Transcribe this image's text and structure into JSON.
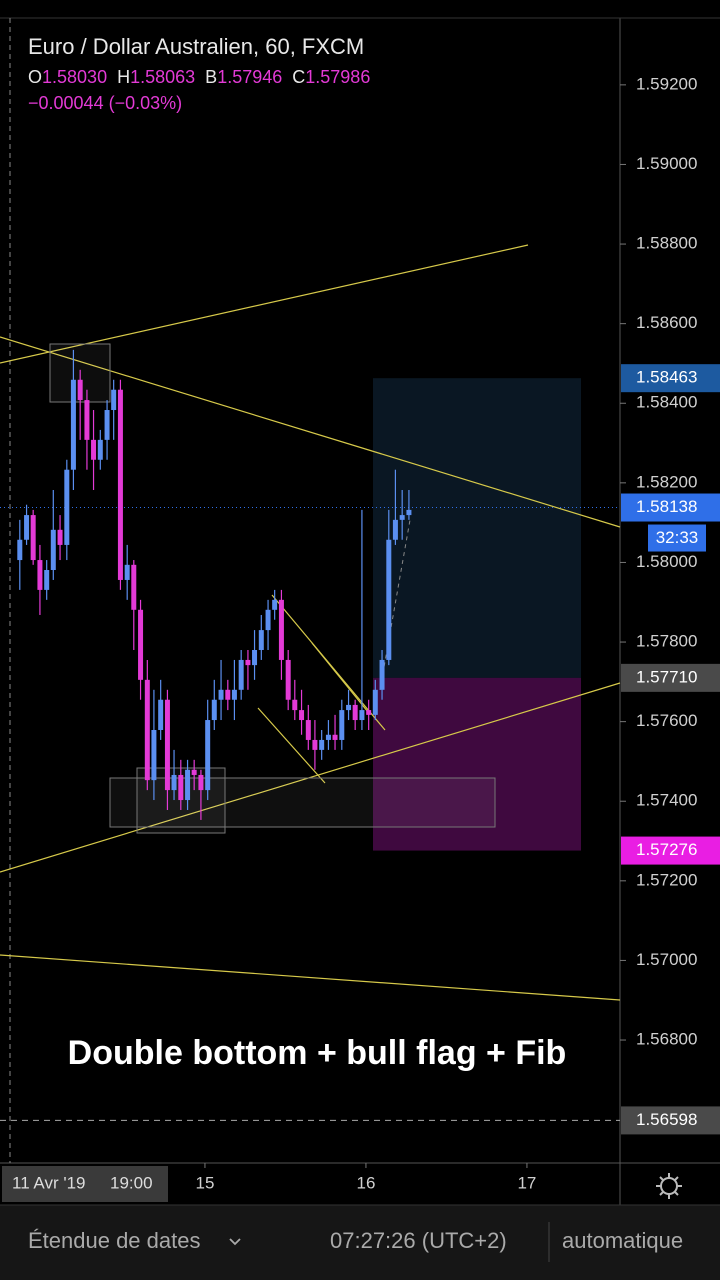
{
  "chart_data": {
    "type": "candlestick",
    "title": "Euro / Dollar Australien, 60, FXCM",
    "ohlc_header": [
      {
        "key": "O",
        "value": "1.58030"
      },
      {
        "key": "H",
        "value": "1.58063"
      },
      {
        "key": "B",
        "value": "1.57946"
      },
      {
        "key": "C",
        "value": "1.57986"
      }
    ],
    "change": "−0.00044 (−0.03%)",
    "annotation": "Double bottom + bull flag + Fib",
    "up_color": "#5b8ff0",
    "down_color": "#e33ad6",
    "xlim": [
      13.727,
      17.578
    ],
    "xticks": [
      15,
      16,
      17
    ],
    "ylim": [
      1.56491,
      1.59368
    ],
    "yticks": [
      {
        "value": 1.592,
        "label": "1.59200"
      },
      {
        "value": 1.59,
        "label": "1.59000"
      },
      {
        "value": 1.588,
        "label": "1.58800"
      },
      {
        "value": 1.586,
        "label": "1.58600"
      },
      {
        "value": 1.584,
        "label": "1.58400"
      },
      {
        "value": 1.582,
        "label": "1.58200"
      },
      {
        "value": 1.58,
        "label": "1.58000"
      },
      {
        "value": 1.578,
        "label": "1.57800"
      },
      {
        "value": 1.576,
        "label": "1.57600"
      },
      {
        "value": 1.574,
        "label": "1.57400"
      },
      {
        "value": 1.572,
        "label": "1.57200"
      },
      {
        "value": 1.57,
        "label": "1.57000"
      },
      {
        "value": 1.568,
        "label": "1.56800"
      }
    ],
    "price_labels": [
      {
        "value": 1.58463,
        "label": "1.58463",
        "color": "#1d5aa0"
      },
      {
        "value": 1.58138,
        "label": "1.58138",
        "color": "#2f6fe8",
        "line": "dotted"
      },
      {
        "value": 1.5771,
        "label": "1.57710",
        "color": "#4a4a4a"
      },
      {
        "value": 1.57276,
        "label": "1.57276",
        "color": "#e91ee3"
      },
      {
        "value": 1.56598,
        "label": "1.56598",
        "color": "#4a4a4a",
        "line": "dashed"
      }
    ],
    "countdown": "32:33",
    "crosshair": {
      "date": "11 Avr '19",
      "time": "19:00"
    },
    "x": [
      13.85,
      13.892,
      13.933,
      13.975,
      14.017,
      14.058,
      14.1,
      14.142,
      14.183,
      14.225,
      14.267,
      14.308,
      14.35,
      14.392,
      14.433,
      14.475,
      14.517,
      14.558,
      14.6,
      14.642,
      14.683,
      14.725,
      14.767,
      14.808,
      14.85,
      14.892,
      14.933,
      14.975,
      15.017,
      15.058,
      15.1,
      15.142,
      15.183,
      15.225,
      15.267,
      15.308,
      15.35,
      15.392,
      15.433,
      15.475,
      15.517,
      15.558,
      15.6,
      15.642,
      15.683,
      15.725,
      15.767,
      15.808,
      15.85,
      15.892,
      15.933,
      15.975,
      16.017,
      16.058,
      16.1,
      16.142,
      16.183,
      16.225,
      16.267
    ],
    "open": [
      1.58006,
      1.58057,
      1.58119,
      1.58006,
      1.57931,
      1.57981,
      1.58082,
      1.58044,
      1.58233,
      1.58459,
      1.58408,
      1.58308,
      1.58258,
      1.58308,
      1.58383,
      1.58434,
      1.57956,
      1.57994,
      1.57881,
      1.57705,
      1.57453,
      1.57579,
      1.57655,
      1.57428,
      1.57466,
      1.57403,
      1.57479,
      1.57466,
      1.57428,
      1.57604,
      1.57655,
      1.5768,
      1.57655,
      1.5768,
      1.57755,
      1.57742,
      1.5778,
      1.5783,
      1.57881,
      1.57906,
      1.57755,
      1.57655,
      1.57629,
      1.57604,
      1.57554,
      1.57529,
      1.57554,
      1.57567,
      1.57554,
      1.57629,
      1.57642,
      1.57604,
      1.57629,
      1.57617,
      1.5768,
      1.57755,
      1.58057,
      1.58107,
      1.58119
    ],
    "high": [
      1.58107,
      1.58145,
      1.58132,
      1.58044,
      1.58006,
      1.58182,
      1.58119,
      1.58258,
      1.58534,
      1.58484,
      1.58434,
      1.58383,
      1.58333,
      1.58408,
      1.58459,
      1.58459,
      1.58044,
      1.58006,
      1.57906,
      1.57755,
      1.5768,
      1.57705,
      1.5768,
      1.57529,
      1.57504,
      1.57504,
      1.57504,
      1.57479,
      1.57655,
      1.57705,
      1.57755,
      1.57705,
      1.57755,
      1.5778,
      1.5778,
      1.5783,
      1.57868,
      1.57906,
      1.57931,
      1.57931,
      1.5778,
      1.57705,
      1.5768,
      1.57642,
      1.57604,
      1.57579,
      1.57604,
      1.57617,
      1.57655,
      1.5768,
      1.57655,
      1.58132,
      1.57655,
      1.57705,
      1.5778,
      1.58132,
      1.58233,
      1.58182,
      1.58182
    ],
    "low": [
      1.57931,
      1.58044,
      1.57994,
      1.57868,
      1.57906,
      1.57956,
      1.58006,
      1.58006,
      1.58182,
      1.58308,
      1.58233,
      1.58182,
      1.58233,
      1.58258,
      1.58308,
      1.57931,
      1.57906,
      1.5778,
      1.57655,
      1.57428,
      1.57403,
      1.57554,
      1.57378,
      1.57403,
      1.57378,
      1.57378,
      1.57428,
      1.57353,
      1.57403,
      1.57579,
      1.57604,
      1.57629,
      1.57604,
      1.57655,
      1.5768,
      1.57705,
      1.57755,
      1.5778,
      1.57856,
      1.57705,
      1.57629,
      1.57604,
      1.57567,
      1.57529,
      1.57479,
      1.57504,
      1.57529,
      1.57529,
      1.57529,
      1.57604,
      1.57579,
      1.57579,
      1.57579,
      1.57604,
      1.57655,
      1.57742,
      1.58044,
      1.58057,
      1.58107
    ],
    "close": [
      1.58057,
      1.58119,
      1.58006,
      1.57931,
      1.57981,
      1.58082,
      1.58044,
      1.58233,
      1.58459,
      1.58408,
      1.58308,
      1.58258,
      1.58308,
      1.58383,
      1.58434,
      1.57956,
      1.57994,
      1.57881,
      1.57705,
      1.57453,
      1.57579,
      1.57655,
      1.57428,
      1.57466,
      1.57403,
      1.57479,
      1.57466,
      1.57428,
      1.57604,
      1.57655,
      1.5768,
      1.57655,
      1.5768,
      1.57755,
      1.57742,
      1.5778,
      1.5783,
      1.57881,
      1.57906,
      1.57755,
      1.57655,
      1.57629,
      1.57604,
      1.57554,
      1.57529,
      1.57554,
      1.57567,
      1.57554,
      1.57629,
      1.57642,
      1.57604,
      1.57629,
      1.57617,
      1.5768,
      1.57755,
      1.58057,
      1.58107,
      1.58119,
      1.58132
    ],
    "footer": {
      "range": "Étendue de dates",
      "clock": "07:27:26 (UTC+2)",
      "scale": "automatique"
    }
  }
}
